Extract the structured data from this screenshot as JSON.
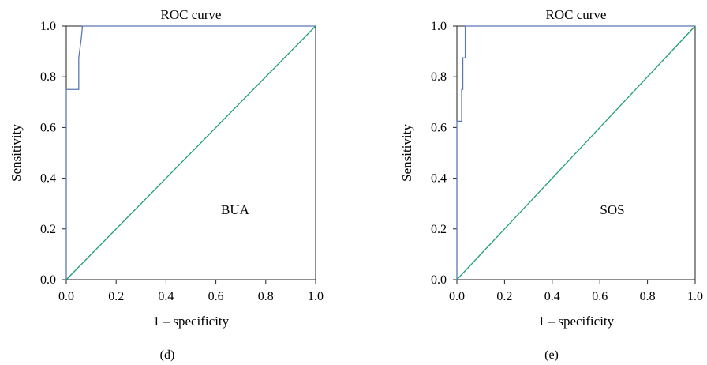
{
  "charts": [
    {
      "panel_label": "(d)",
      "chart_data": {
        "type": "line",
        "title": "ROC curve",
        "xlabel": "1 – specificity",
        "ylabel": "Sensitivity",
        "annotation": "BUA",
        "xlim": [
          0.0,
          1.0
        ],
        "ylim": [
          0.0,
          1.0
        ],
        "xticks": [
          "0.0",
          "0.2",
          "0.4",
          "0.6",
          "0.8",
          "1.0"
        ],
        "yticks": [
          "0.0",
          "0.2",
          "0.4",
          "0.6",
          "0.8",
          "1.0"
        ],
        "grid": false,
        "series": [
          {
            "color": "#5b78b3",
            "points": [
              [
                0.0,
                0.0
              ],
              [
                0.0,
                0.75
              ],
              [
                0.05,
                0.75
              ],
              [
                0.05,
                0.875
              ],
              [
                0.06,
                0.95
              ],
              [
                0.065,
                1.0
              ],
              [
                1.0,
                1.0
              ]
            ]
          },
          {
            "color": "#1f9e77",
            "points": [
              [
                0.0,
                0.0
              ],
              [
                1.0,
                1.0
              ]
            ]
          }
        ]
      }
    },
    {
      "panel_label": "(e)",
      "chart_data": {
        "type": "line",
        "title": "ROC curve",
        "xlabel": "1 – specificity",
        "ylabel": "Sensitivity",
        "annotation": "SOS",
        "xlim": [
          0.0,
          1.0
        ],
        "ylim": [
          0.0,
          1.0
        ],
        "xticks": [
          "0.0",
          "0.2",
          "0.4",
          "0.6",
          "0.8",
          "1.0"
        ],
        "yticks": [
          "0.0",
          "0.2",
          "0.4",
          "0.6",
          "0.8",
          "1.0"
        ],
        "grid": false,
        "series": [
          {
            "color": "#5b78b3",
            "points": [
              [
                0.0,
                0.0
              ],
              [
                0.0,
                0.625
              ],
              [
                0.02,
                0.625
              ],
              [
                0.02,
                0.75
              ],
              [
                0.025,
                0.75
              ],
              [
                0.025,
                0.875
              ],
              [
                0.035,
                0.875
              ],
              [
                0.035,
                1.0
              ],
              [
                1.0,
                1.0
              ]
            ]
          },
          {
            "color": "#1f9e77",
            "points": [
              [
                0.0,
                0.0
              ],
              [
                1.0,
                1.0
              ]
            ]
          }
        ]
      }
    }
  ]
}
